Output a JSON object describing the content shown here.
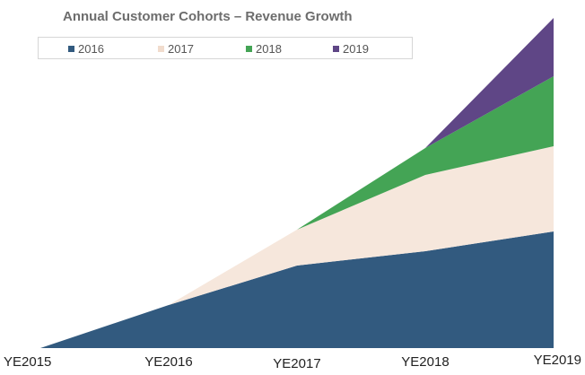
{
  "chart_data": {
    "type": "area",
    "stacked": true,
    "title": "Annual Customer Cohorts – Revenue Growth",
    "x": [
      "YE2015",
      "YE2016",
      "YE2017",
      "YE2018",
      "YE2019"
    ],
    "ylim": [
      0,
      365
    ],
    "grid": false,
    "legend_position": "top",
    "series": [
      {
        "name": "2016",
        "color": "#325a7f",
        "values": [
          0,
          48,
          92,
          108,
          130
        ]
      },
      {
        "name": "2017",
        "color": "#f6e7dc",
        "values": [
          0,
          0,
          40,
          85,
          95
        ]
      },
      {
        "name": "2018",
        "color": "#44a455",
        "values": [
          0,
          0,
          0,
          30,
          78
        ]
      },
      {
        "name": "2019",
        "color": "#5f4686",
        "values": [
          0,
          0,
          0,
          0,
          65
        ]
      }
    ]
  }
}
